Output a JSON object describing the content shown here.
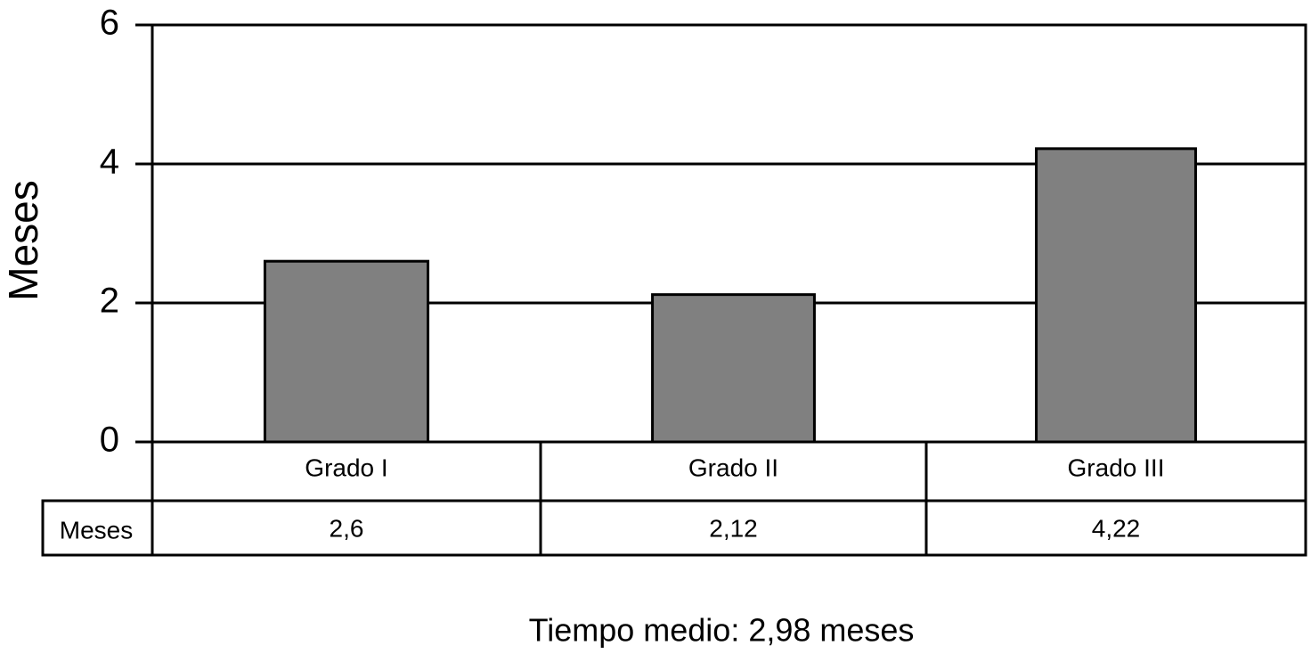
{
  "chart_data": {
    "type": "bar",
    "y_label": "Meses",
    "caption": "Tiempo medio: 2,98 meses",
    "categories": [
      "Grado I",
      "Grado II",
      "Grado III"
    ],
    "series": [
      {
        "name": "Meses",
        "color": "#808080",
        "values": [
          2.6,
          2.12,
          4.22
        ],
        "value_labels": [
          "2,6",
          "2,12",
          "4,22"
        ]
      }
    ],
    "ylim": [
      0,
      6
    ],
    "yticks": [
      0,
      2,
      4,
      6
    ],
    "grid": true
  }
}
